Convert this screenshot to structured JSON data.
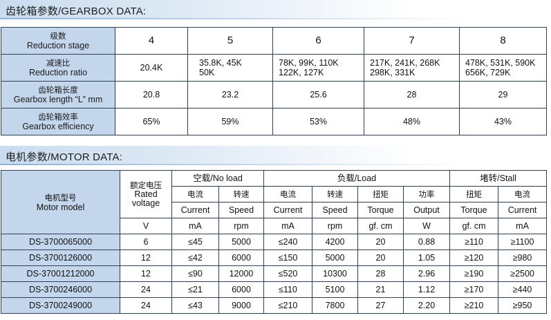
{
  "gearbox_section": {
    "title": "齿轮箱参数/GEARBOX DATA:"
  },
  "gearbox": {
    "stage": {
      "cn": "级数",
      "en": "Reduction stage",
      "values": [
        "4",
        "5",
        "6",
        "7",
        "8"
      ]
    },
    "ratio": {
      "cn": "减速比",
      "en": "Reduction ratio",
      "values": [
        [
          "20.4K"
        ],
        [
          "35.8K, 45K",
          "50K"
        ],
        [
          "78K, 99K, 110K",
          "122K, 127K"
        ],
        [
          "217K, 241K, 268K",
          "298K, 331K"
        ],
        [
          "478K, 531K, 590K",
          "656K, 729K"
        ]
      ]
    },
    "length": {
      "cn": "齿轮箱长度",
      "en": "Gearbox length “L” mm",
      "values": [
        "20.8",
        "23.2",
        "25.6",
        "28",
        "29"
      ]
    },
    "efficiency": {
      "cn": "齿轮箱效率",
      "en": "Gearbox efficiency",
      "values": [
        "65%",
        "59%",
        "53%",
        "48%",
        "43%"
      ]
    }
  },
  "motor_section": {
    "title": "电机参数/MOTOR DATA:"
  },
  "motor": {
    "model_header": {
      "cn": "电机型号",
      "en": "Motor model"
    },
    "voltage_header": {
      "cn": "额定电压",
      "en1": "Rated",
      "en2": "voltage",
      "unit": "V"
    },
    "groups": {
      "no_load": "空载/No load",
      "load": "负载/Load",
      "stall": "堵转/Stall"
    },
    "columns": [
      {
        "cn": "电流",
        "en": "Current",
        "unit": "mA"
      },
      {
        "cn": "转速",
        "en": "Speed",
        "unit": "rpm"
      },
      {
        "cn": "电流",
        "en": "Current",
        "unit": "mA"
      },
      {
        "cn": "转速",
        "en": "Speed",
        "unit": "rpm"
      },
      {
        "cn": "扭矩",
        "en": "Torque",
        "unit": "gf. cm"
      },
      {
        "cn": "功率",
        "en": "Output",
        "unit": "W"
      },
      {
        "cn": "扭矩",
        "en": "Torque",
        "unit": "gf. cm"
      },
      {
        "cn": "电流",
        "en": "Current",
        "unit": "mA"
      }
    ],
    "rows": [
      [
        "DS-3700065000",
        "6",
        "≤45",
        "5000",
        "≤240",
        "4200",
        "20",
        "0.88",
        "≥110",
        "≥1100"
      ],
      [
        "DS-3700126000",
        "12",
        "≤42",
        "6000",
        "≤150",
        "5000",
        "20",
        "1.05",
        "≥120",
        "≥980"
      ],
      [
        "DS-37001212000",
        "12",
        "≤90",
        "12000",
        "≤520",
        "10300",
        "28",
        "2.96",
        "≥190",
        "≥2500"
      ],
      [
        "DS-3700246000",
        "24",
        "≤21",
        "6000",
        "≤110",
        "5100",
        "21",
        "1.12",
        "≥170",
        "≥440"
      ],
      [
        "DS-3700249000",
        "24",
        "≤43",
        "9000",
        "≤210",
        "7800",
        "27",
        "2.20",
        "≥210",
        "≥950"
      ]
    ]
  }
}
